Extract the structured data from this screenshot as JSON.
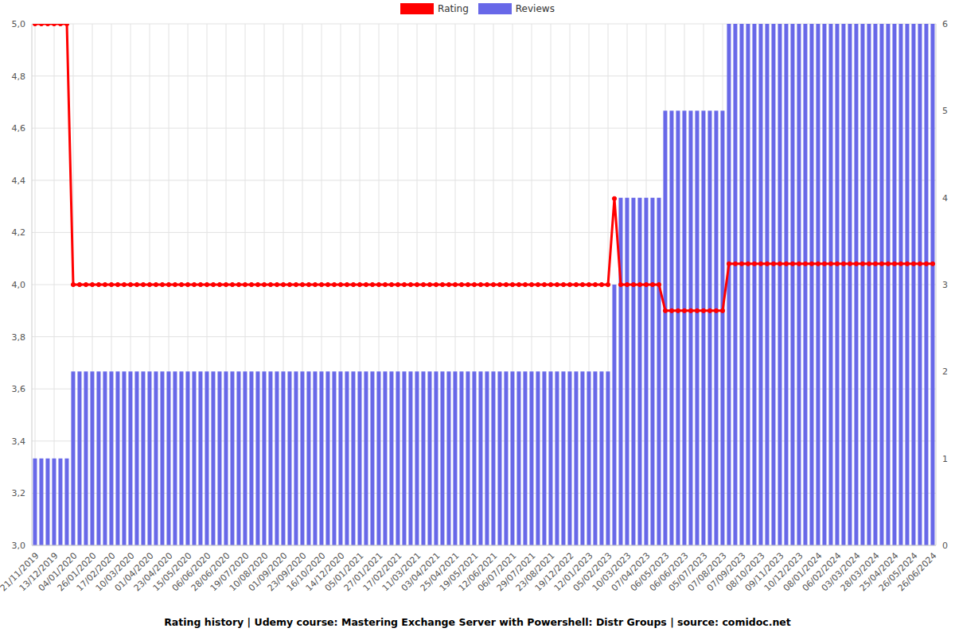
{
  "chart_data": {
    "type": "combo",
    "title": "Rating history | Udemy course: Mastering Exchange Server with Powershell: Distr Groups | source: comidoc.net",
    "categories": [
      "21/11/2019",
      null,
      null,
      "13/12/2019",
      null,
      null,
      "04/01/2020",
      null,
      null,
      "26/01/2020",
      null,
      null,
      "17/02/2020",
      null,
      null,
      "10/03/2020",
      null,
      null,
      "01/04/2020",
      null,
      null,
      "23/04/2020",
      null,
      null,
      "15/05/2020",
      null,
      null,
      "06/06/2020",
      null,
      null,
      "28/06/2020",
      null,
      null,
      "19/07/2020",
      null,
      null,
      "10/08/2020",
      null,
      null,
      "01/09/2020",
      null,
      null,
      "23/09/2020",
      null,
      null,
      "16/10/2020",
      null,
      null,
      "14/12/2020",
      null,
      null,
      "05/01/2021",
      null,
      null,
      "27/01/2021",
      null,
      null,
      "17/02/2021",
      null,
      null,
      "11/03/2021",
      null,
      null,
      "03/04/2021",
      null,
      null,
      "25/04/2021",
      null,
      null,
      "19/05/2021",
      null,
      null,
      "12/06/2021",
      null,
      null,
      "06/07/2021",
      null,
      null,
      "29/07/2021",
      null,
      null,
      "23/08/2021",
      null,
      null,
      "19/12/2022",
      null,
      null,
      "12/01/2023",
      null,
      null,
      "05/02/2023",
      null,
      null,
      "10/03/2023",
      null,
      null,
      "07/04/2023",
      null,
      null,
      "06/05/2023",
      null,
      null,
      "06/06/2023",
      null,
      null,
      "05/07/2023",
      null,
      null,
      "07/08/2023",
      null,
      null,
      "07/09/2023",
      null,
      null,
      "08/10/2023",
      null,
      null,
      "09/11/2023",
      null,
      null,
      "10/12/2023",
      null,
      null,
      "08/01/2024",
      null,
      null,
      "06/02/2024",
      null,
      null,
      "03/03/2024",
      null,
      null,
      "28/03/2024",
      null,
      null,
      "25/04/2024",
      null,
      null,
      "26/05/2024",
      null,
      null,
      "26/06/2024"
    ],
    "series": [
      {
        "name": "Rating",
        "type": "line",
        "color": "#ff0000",
        "marker": "circle",
        "values": [
          5,
          5,
          5,
          5,
          5,
          5,
          4,
          4,
          4,
          4,
          4,
          4,
          4,
          4,
          4,
          4,
          4,
          4,
          4,
          4,
          4,
          4,
          4,
          4,
          4,
          4,
          4,
          4,
          4,
          4,
          4,
          4,
          4,
          4,
          4,
          4,
          4,
          4,
          4,
          4,
          4,
          4,
          4,
          4,
          4,
          4,
          4,
          4,
          4,
          4,
          4,
          4,
          4,
          4,
          4,
          4,
          4,
          4,
          4,
          4,
          4,
          4,
          4,
          4,
          4,
          4,
          4,
          4,
          4,
          4,
          4,
          4,
          4,
          4,
          4,
          4,
          4,
          4,
          4,
          4,
          4,
          4,
          4,
          4,
          4,
          4,
          4,
          4,
          4,
          4,
          4,
          4.33,
          4,
          4,
          4,
          4,
          4,
          4,
          4,
          3.9,
          3.9,
          3.9,
          3.9,
          3.9,
          3.9,
          3.9,
          3.9,
          3.9,
          3.9,
          4.08,
          4.08,
          4.08,
          4.08,
          4.08,
          4.08,
          4.08,
          4.08,
          4.08,
          4.08,
          4.08,
          4.08,
          4.08,
          4.08,
          4.08,
          4.08,
          4.08,
          4.08,
          4.08,
          4.08,
          4.08,
          4.08,
          4.08,
          4.08,
          4.08,
          4.08,
          4.08,
          4.08,
          4.08,
          4.08,
          4.08,
          4.08,
          4.08
        ]
      },
      {
        "name": "Reviews",
        "type": "bar",
        "color": "#6868e8",
        "axis": "y2",
        "values": [
          1,
          1,
          1,
          1,
          1,
          1,
          2,
          2,
          2,
          2,
          2,
          2,
          2,
          2,
          2,
          2,
          2,
          2,
          2,
          2,
          2,
          2,
          2,
          2,
          2,
          2,
          2,
          2,
          2,
          2,
          2,
          2,
          2,
          2,
          2,
          2,
          2,
          2,
          2,
          2,
          2,
          2,
          2,
          2,
          2,
          2,
          2,
          2,
          2,
          2,
          2,
          2,
          2,
          2,
          2,
          2,
          2,
          2,
          2,
          2,
          2,
          2,
          2,
          2,
          2,
          2,
          2,
          2,
          2,
          2,
          2,
          2,
          2,
          2,
          2,
          2,
          2,
          2,
          2,
          2,
          2,
          2,
          2,
          2,
          2,
          2,
          2,
          2,
          2,
          2,
          2,
          3,
          4,
          4,
          4,
          4,
          4,
          4,
          4,
          5,
          5,
          5,
          5,
          5,
          5,
          5,
          5,
          5,
          5,
          6,
          6,
          6,
          6,
          6,
          6,
          6,
          6,
          6,
          6,
          6,
          6,
          6,
          6,
          6,
          6,
          6,
          6,
          6,
          6,
          6,
          6,
          6,
          6,
          6,
          6,
          6,
          6,
          6,
          6,
          6,
          6,
          6
        ]
      }
    ],
    "ylim": [
      3,
      5
    ],
    "yticks": [
      {
        "value": 3,
        "label": "3,0"
      },
      {
        "value": 3.2,
        "label": "3,2"
      },
      {
        "value": 3.4,
        "label": "3,4"
      },
      {
        "value": 3.6,
        "label": "3,6"
      },
      {
        "value": 3.8,
        "label": "3,8"
      },
      {
        "value": 4,
        "label": "4,0"
      },
      {
        "value": 4.2,
        "label": "4,2"
      },
      {
        "value": 4.4,
        "label": "4,4"
      },
      {
        "value": 4.6,
        "label": "4,6"
      },
      {
        "value": 4.8,
        "label": "4,8"
      },
      {
        "value": 5,
        "label": "5,0"
      }
    ],
    "y2lim": [
      0,
      6
    ],
    "y2ticks": [
      0,
      1,
      2,
      3,
      4,
      5,
      6
    ],
    "grid": true,
    "legend": "top"
  }
}
